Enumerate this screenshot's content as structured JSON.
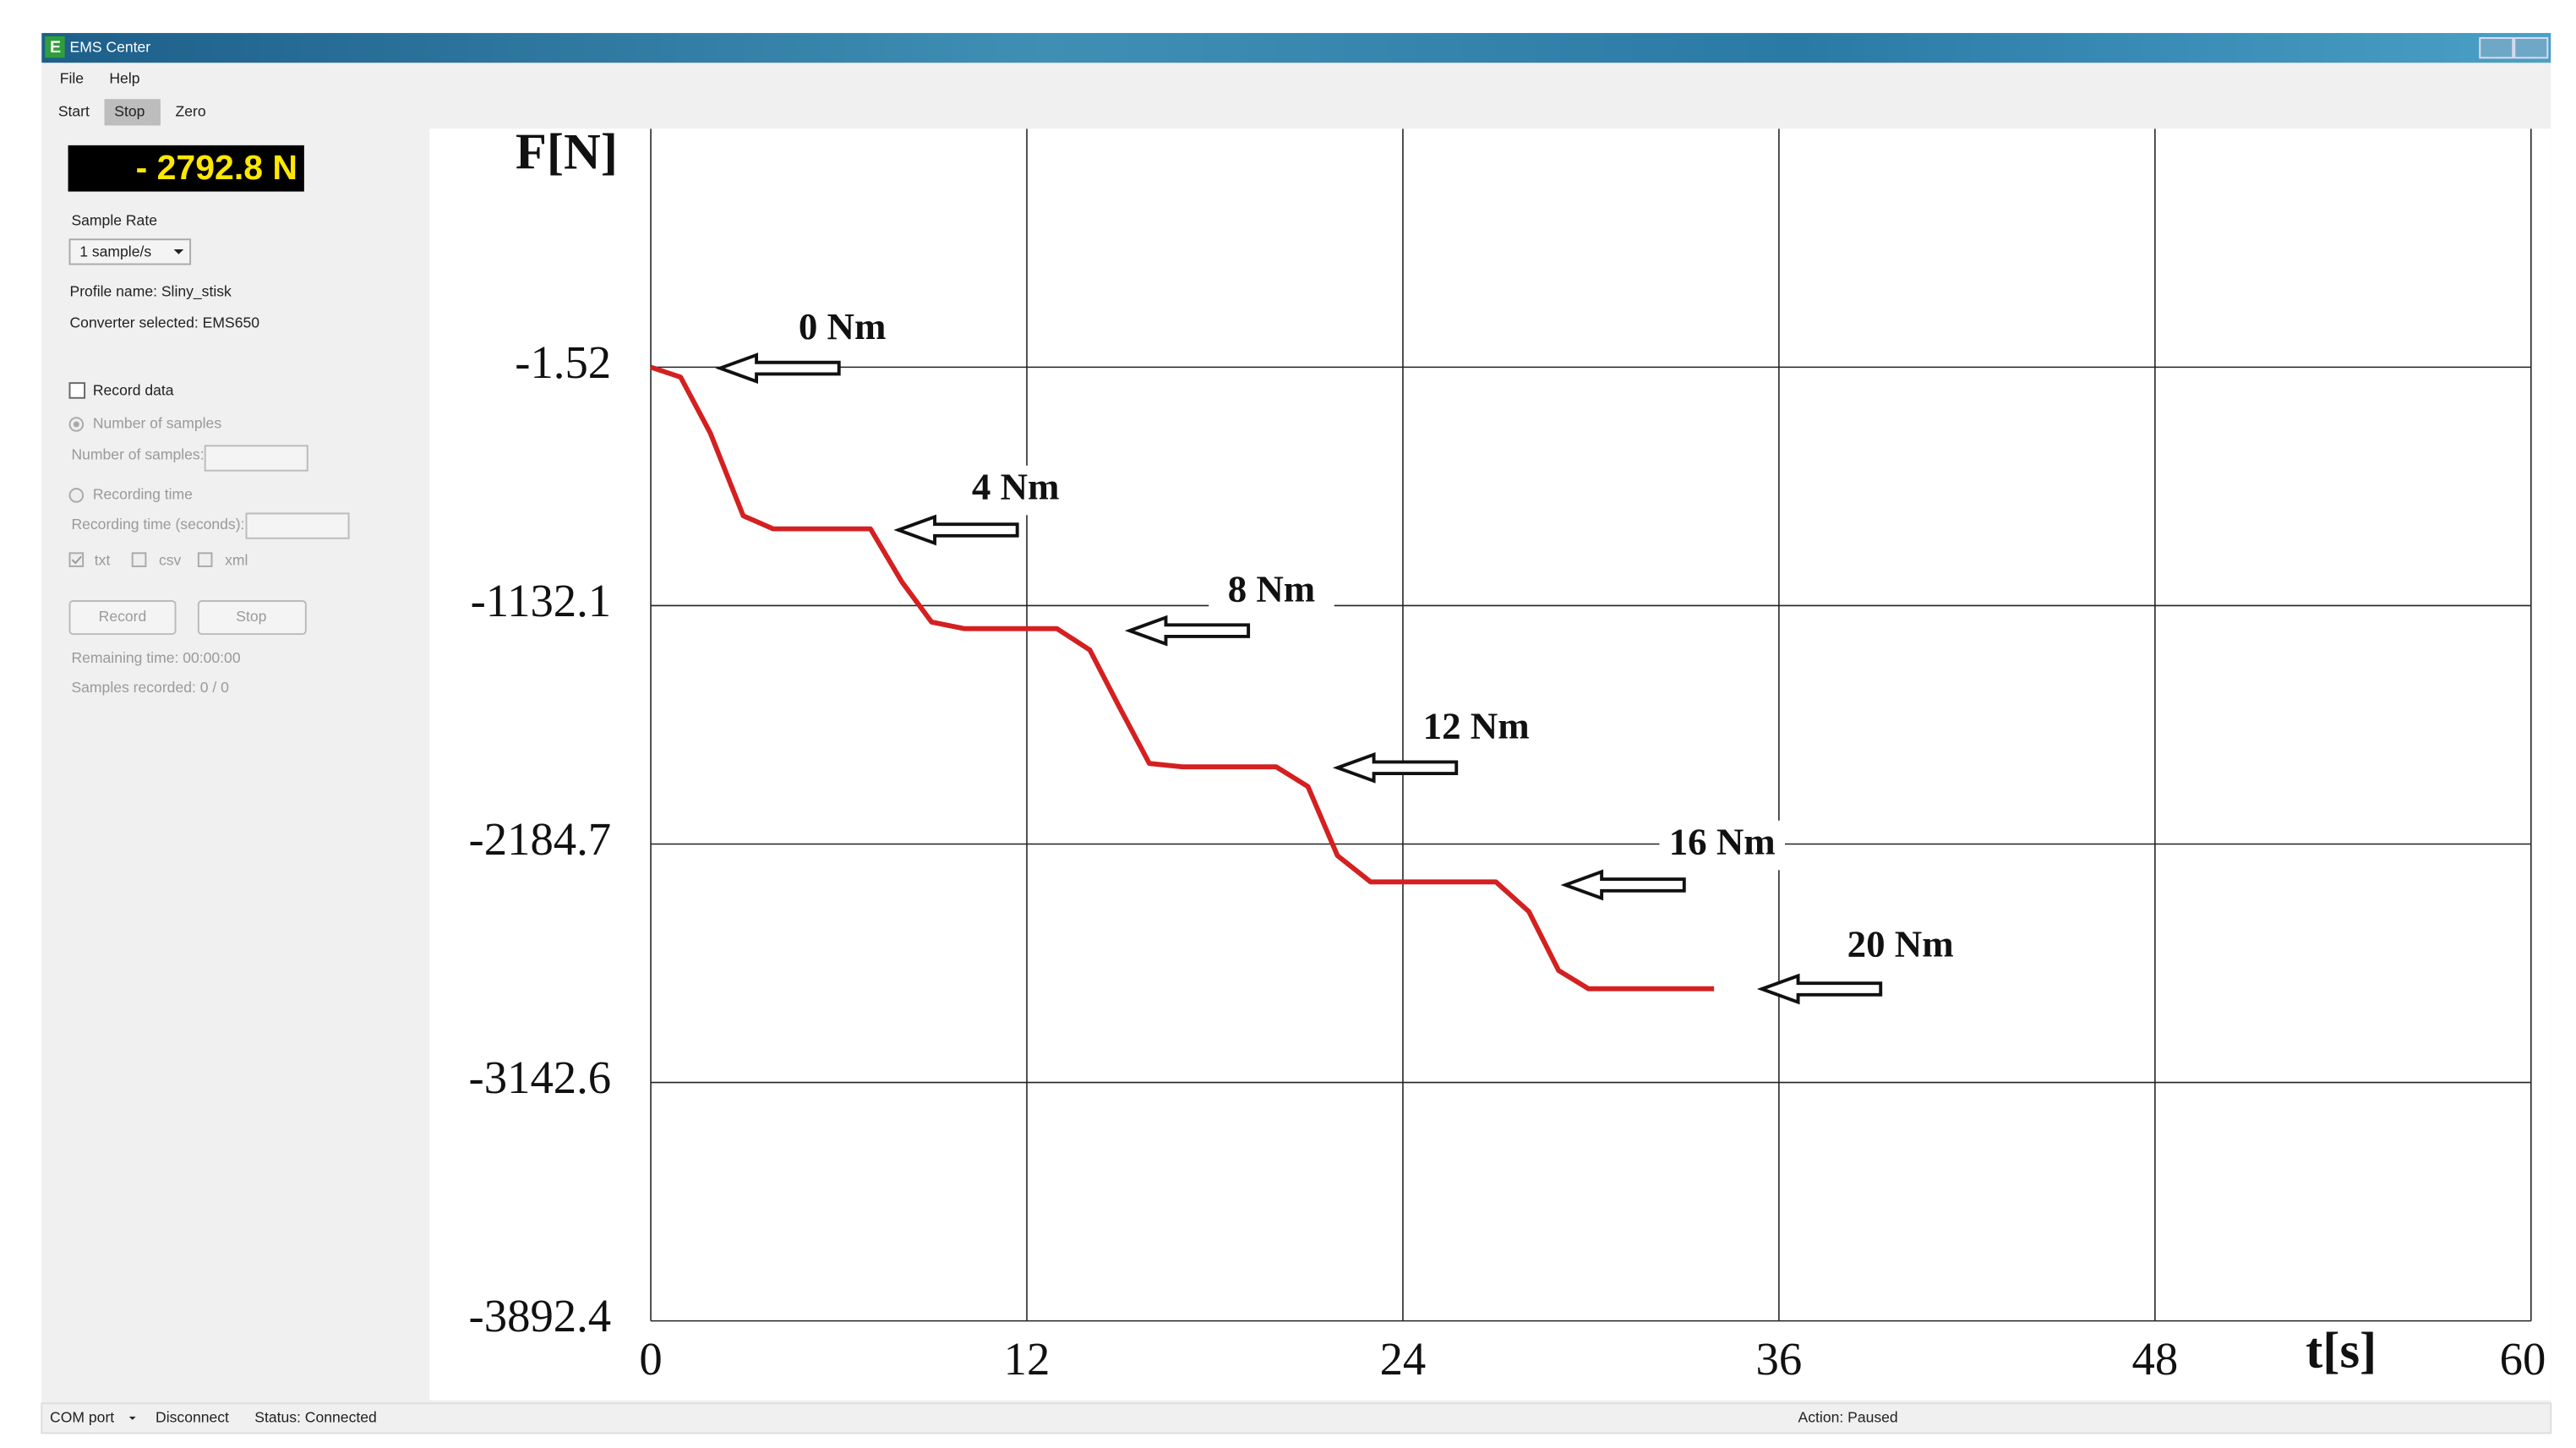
{
  "window": {
    "title": "EMS Center",
    "menu": [
      "File",
      "Help"
    ],
    "toolbar": [
      "Start",
      "Stop",
      "Zero"
    ]
  },
  "panel": {
    "force_display": "- 2792.8 N",
    "sample_rate_label": "Sample Rate",
    "sample_rate": "1 sample/s",
    "profile": "Profile name: Sliny_stisk",
    "converter": "Converter selected: EMS650",
    "record_data": "Record data",
    "number_of_samples_option": "Number of samples",
    "number_of_samples_label": "Number of samples:",
    "recording_time_option": "Recording time",
    "recording_time_label": "Recording time (seconds):",
    "formats": [
      "txt",
      "csv",
      "xml"
    ],
    "buttons": [
      "Record",
      "Stop"
    ],
    "remaining_time": "Remaining time: 00:00:00",
    "samples_recorded": "Samples recorded: 0 / 0"
  },
  "status_bar": {
    "com_port": "COM port",
    "disconnect": "Disconnect",
    "status": "Status: Connected",
    "action": "Action: Paused"
  },
  "chart_data": {
    "type": "line",
    "x_label": "t[s]",
    "y_label": "F[N]",
    "x": [
      0,
      0.95,
      1.9,
      2.95,
      3.9,
      7.01,
      8.01,
      8.96,
      10.01,
      12.96,
      14.01,
      14.96,
      15.91,
      16.96,
      19.96,
      20.97,
      21.91,
      22.97,
      26.97,
      28.02,
      28.97,
      29.92,
      33.93
    ],
    "values": [
      -1.52,
      -48.4,
      -314,
      -706,
      -768,
      -768,
      -1019,
      -1204.7,
      -1233.8,
      -1233.8,
      -1328,
      -1582,
      -1829,
      -1844,
      -1844,
      -1931,
      -2231,
      -2337,
      -2337,
      -2456,
      -2693,
      -2766,
      -2766
    ],
    "color": "#d42020",
    "annotations": [
      "0 Nm",
      "4 Nm",
      "8 Nm",
      "12 Nm",
      "16 Nm",
      "20 Nm"
    ],
    "xlim": [
      0,
      60
    ],
    "xticks": [
      0,
      12,
      24,
      36,
      48,
      60
    ],
    "ylim": [
      -3892.4,
      1129
    ],
    "yticks": [
      -3892.4,
      -3142.6,
      -2184.7,
      -1132.1,
      -1.52
    ],
    "grid": true
  }
}
